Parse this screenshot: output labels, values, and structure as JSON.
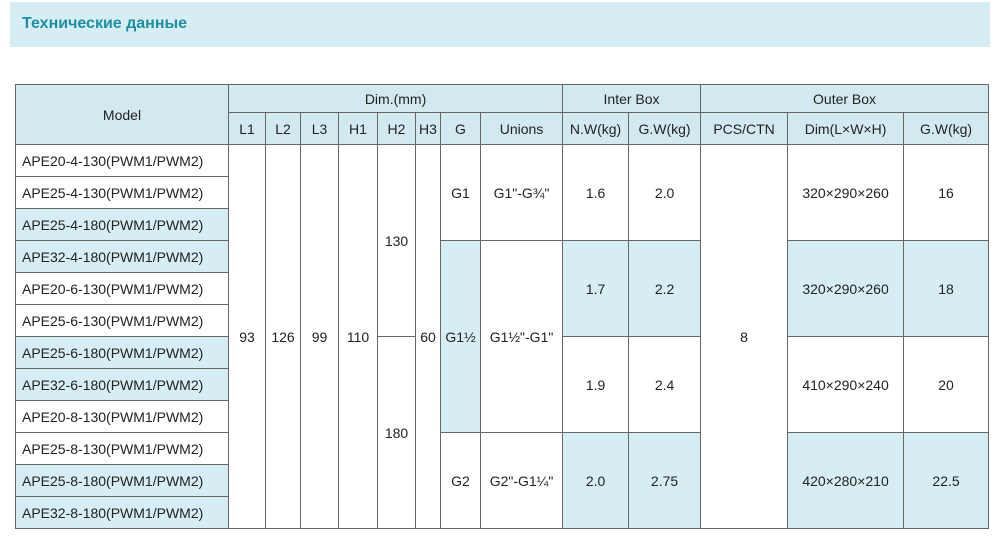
{
  "header": {
    "title": "Технические данные"
  },
  "table": {
    "group_headers": [
      "Model",
      "Dim.(mm)",
      "Inter Box",
      "Outer Box"
    ],
    "columns": [
      "L1",
      "L2",
      "L3",
      "H1",
      "H2",
      "H3",
      "G",
      "Unions",
      "N.W(kg)",
      "G.W(kg)",
      "PCS/CTN",
      "Dim(L×W×H)",
      "G.W(kg)"
    ],
    "models": [
      "APE20-4-130(PWM1/PWM2)",
      "APE25-4-130(PWM1/PWM2)",
      "APE25-4-180(PWM1/PWM2)",
      "APE32-4-180(PWM1/PWM2)",
      "APE20-6-130(PWM1/PWM2)",
      "APE25-6-130(PWM1/PWM2)",
      "APE25-6-180(PWM1/PWM2)",
      "APE32-6-180(PWM1/PWM2)",
      "APE20-8-130(PWM1/PWM2)",
      "APE25-8-130(PWM1/PWM2)",
      "APE25-8-180(PWM1/PWM2)",
      "APE32-8-180(PWM1/PWM2)"
    ],
    "common": {
      "L1": "93",
      "L2": "126",
      "L3": "99",
      "H1": "110",
      "H3": "60",
      "pcs": "8"
    },
    "h2": [
      "130",
      "180"
    ],
    "connections": [
      {
        "g": "G1",
        "unions": "G1\"-G¾\""
      },
      {
        "g": "G1½",
        "unions": "G1½\"-G1\""
      },
      {
        "g": "G2",
        "unions": "G2\"-G1¼\""
      }
    ],
    "boxes": [
      {
        "nw": "1.6",
        "gw": "2.0",
        "dim": "320×290×260",
        "outer_gw": "16"
      },
      {
        "nw": "1.7",
        "gw": "2.2",
        "dim": "320×290×260",
        "outer_gw": "18"
      },
      {
        "nw": "1.9",
        "gw": "2.4",
        "dim": "410×290×240",
        "outer_gw": "20"
      },
      {
        "nw": "2.0",
        "gw": "2.75",
        "dim": "420×280×210",
        "outer_gw": "22.5"
      }
    ]
  }
}
